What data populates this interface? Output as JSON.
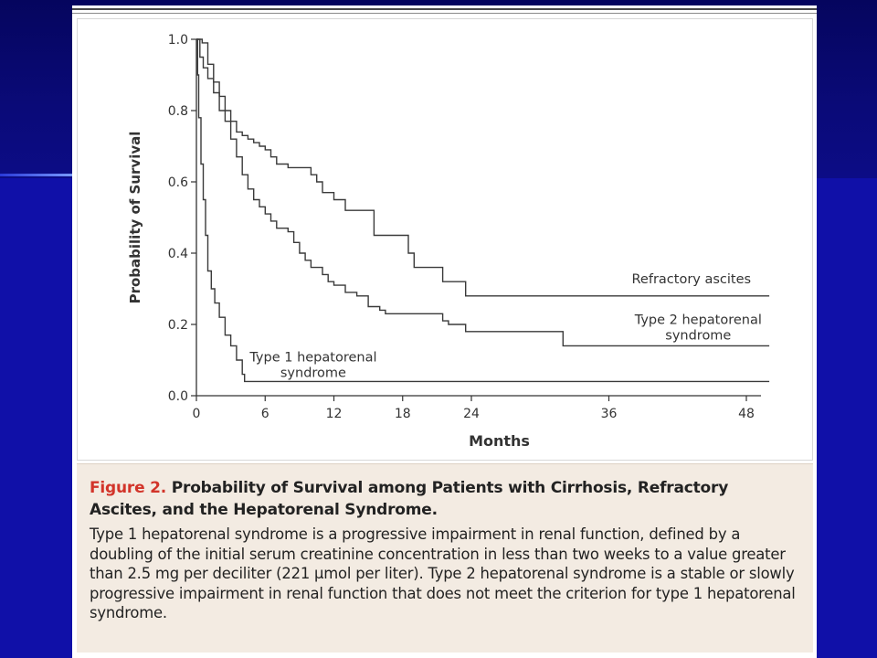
{
  "chart_data": {
    "type": "line",
    "title": "",
    "xlabel": "Months",
    "ylabel": "Probability of Survival",
    "xlim": [
      0,
      50
    ],
    "ylim": [
      0,
      1
    ],
    "x_ticks": [
      0,
      6,
      12,
      18,
      24,
      36,
      48
    ],
    "y_ticks": [
      0.0,
      0.2,
      0.4,
      0.6,
      0.8,
      1.0
    ],
    "x_tick_labels": [
      "0",
      "6",
      "12",
      "18",
      "24",
      "36",
      "48"
    ],
    "y_tick_labels": [
      "0.0",
      "0.2",
      "0.4",
      "0.6",
      "0.8",
      "1.0"
    ],
    "grid": false,
    "step": true,
    "series": [
      {
        "name": "Refractory ascites",
        "label_lines": [
          "Refractory ascites"
        ],
        "points": [
          [
            0,
            1.0
          ],
          [
            0.5,
            0.99
          ],
          [
            1,
            0.93
          ],
          [
            1.5,
            0.88
          ],
          [
            2,
            0.84
          ],
          [
            2.5,
            0.8
          ],
          [
            3,
            0.77
          ],
          [
            3.5,
            0.74
          ],
          [
            4,
            0.73
          ],
          [
            4.5,
            0.72
          ],
          [
            5,
            0.71
          ],
          [
            5.5,
            0.7
          ],
          [
            6,
            0.69
          ],
          [
            6.5,
            0.67
          ],
          [
            7,
            0.65
          ],
          [
            8,
            0.64
          ],
          [
            9.5,
            0.64
          ],
          [
            10,
            0.62
          ],
          [
            10.5,
            0.6
          ],
          [
            11,
            0.57
          ],
          [
            12,
            0.55
          ],
          [
            13,
            0.52
          ],
          [
            15,
            0.52
          ],
          [
            15.5,
            0.45
          ],
          [
            18,
            0.45
          ],
          [
            18.5,
            0.4
          ],
          [
            19,
            0.36
          ],
          [
            21,
            0.36
          ],
          [
            21.5,
            0.32
          ],
          [
            23,
            0.32
          ],
          [
            23.5,
            0.28
          ],
          [
            50,
            0.28
          ]
        ]
      },
      {
        "name": "Type 2 hepatorenal syndrome",
        "label_lines": [
          "Type 2 hepatorenal",
          "syndrome"
        ],
        "points": [
          [
            0,
            1.0
          ],
          [
            0.3,
            0.95
          ],
          [
            0.6,
            0.92
          ],
          [
            1,
            0.89
          ],
          [
            1.5,
            0.85
          ],
          [
            2,
            0.8
          ],
          [
            2.5,
            0.77
          ],
          [
            3,
            0.72
          ],
          [
            3.5,
            0.67
          ],
          [
            4,
            0.62
          ],
          [
            4.5,
            0.58
          ],
          [
            5,
            0.55
          ],
          [
            5.5,
            0.53
          ],
          [
            6,
            0.51
          ],
          [
            6.5,
            0.49
          ],
          [
            7,
            0.47
          ],
          [
            8,
            0.46
          ],
          [
            8.5,
            0.43
          ],
          [
            9,
            0.4
          ],
          [
            9.5,
            0.38
          ],
          [
            10,
            0.36
          ],
          [
            11,
            0.34
          ],
          [
            11.5,
            0.32
          ],
          [
            12,
            0.31
          ],
          [
            13,
            0.29
          ],
          [
            14,
            0.28
          ],
          [
            15,
            0.25
          ],
          [
            16,
            0.24
          ],
          [
            16.5,
            0.23
          ],
          [
            21,
            0.23
          ],
          [
            21.5,
            0.21
          ],
          [
            22,
            0.2
          ],
          [
            23,
            0.2
          ],
          [
            23.5,
            0.18
          ],
          [
            31.5,
            0.18
          ],
          [
            32,
            0.14
          ],
          [
            50,
            0.14
          ]
        ]
      },
      {
        "name": "Type 1 hepatorenal syndrome",
        "label_lines": [
          "Type 1 hepatorenal",
          "syndrome"
        ],
        "points": [
          [
            0,
            1.0
          ],
          [
            0.1,
            0.9
          ],
          [
            0.2,
            0.78
          ],
          [
            0.4,
            0.65
          ],
          [
            0.6,
            0.55
          ],
          [
            0.8,
            0.45
          ],
          [
            1,
            0.35
          ],
          [
            1.3,
            0.3
          ],
          [
            1.6,
            0.26
          ],
          [
            2,
            0.22
          ],
          [
            2.5,
            0.17
          ],
          [
            3,
            0.14
          ],
          [
            3.5,
            0.1
          ],
          [
            4,
            0.06
          ],
          [
            4.2,
            0.04
          ],
          [
            50,
            0.04
          ]
        ]
      }
    ]
  },
  "caption": {
    "figure_label": "Figure 2.",
    "title": "Probability of Survival among Patients with Cirrhosis, Refractory Ascites, and the Hepatorenal Syndrome.",
    "body": "Type 1 hepatorenal syndrome is a progressive impairment in renal function, defined by a doubling of the initial serum creatinine concentration in less than two weeks to a value greater than 2.5 mg per deciliter (221 µmol per liter). Type 2 hepatorenal syndrome is a stable or slowly progressive impairment in renal function that does not meet the criterion for type 1 hepatorenal syndrome."
  }
}
